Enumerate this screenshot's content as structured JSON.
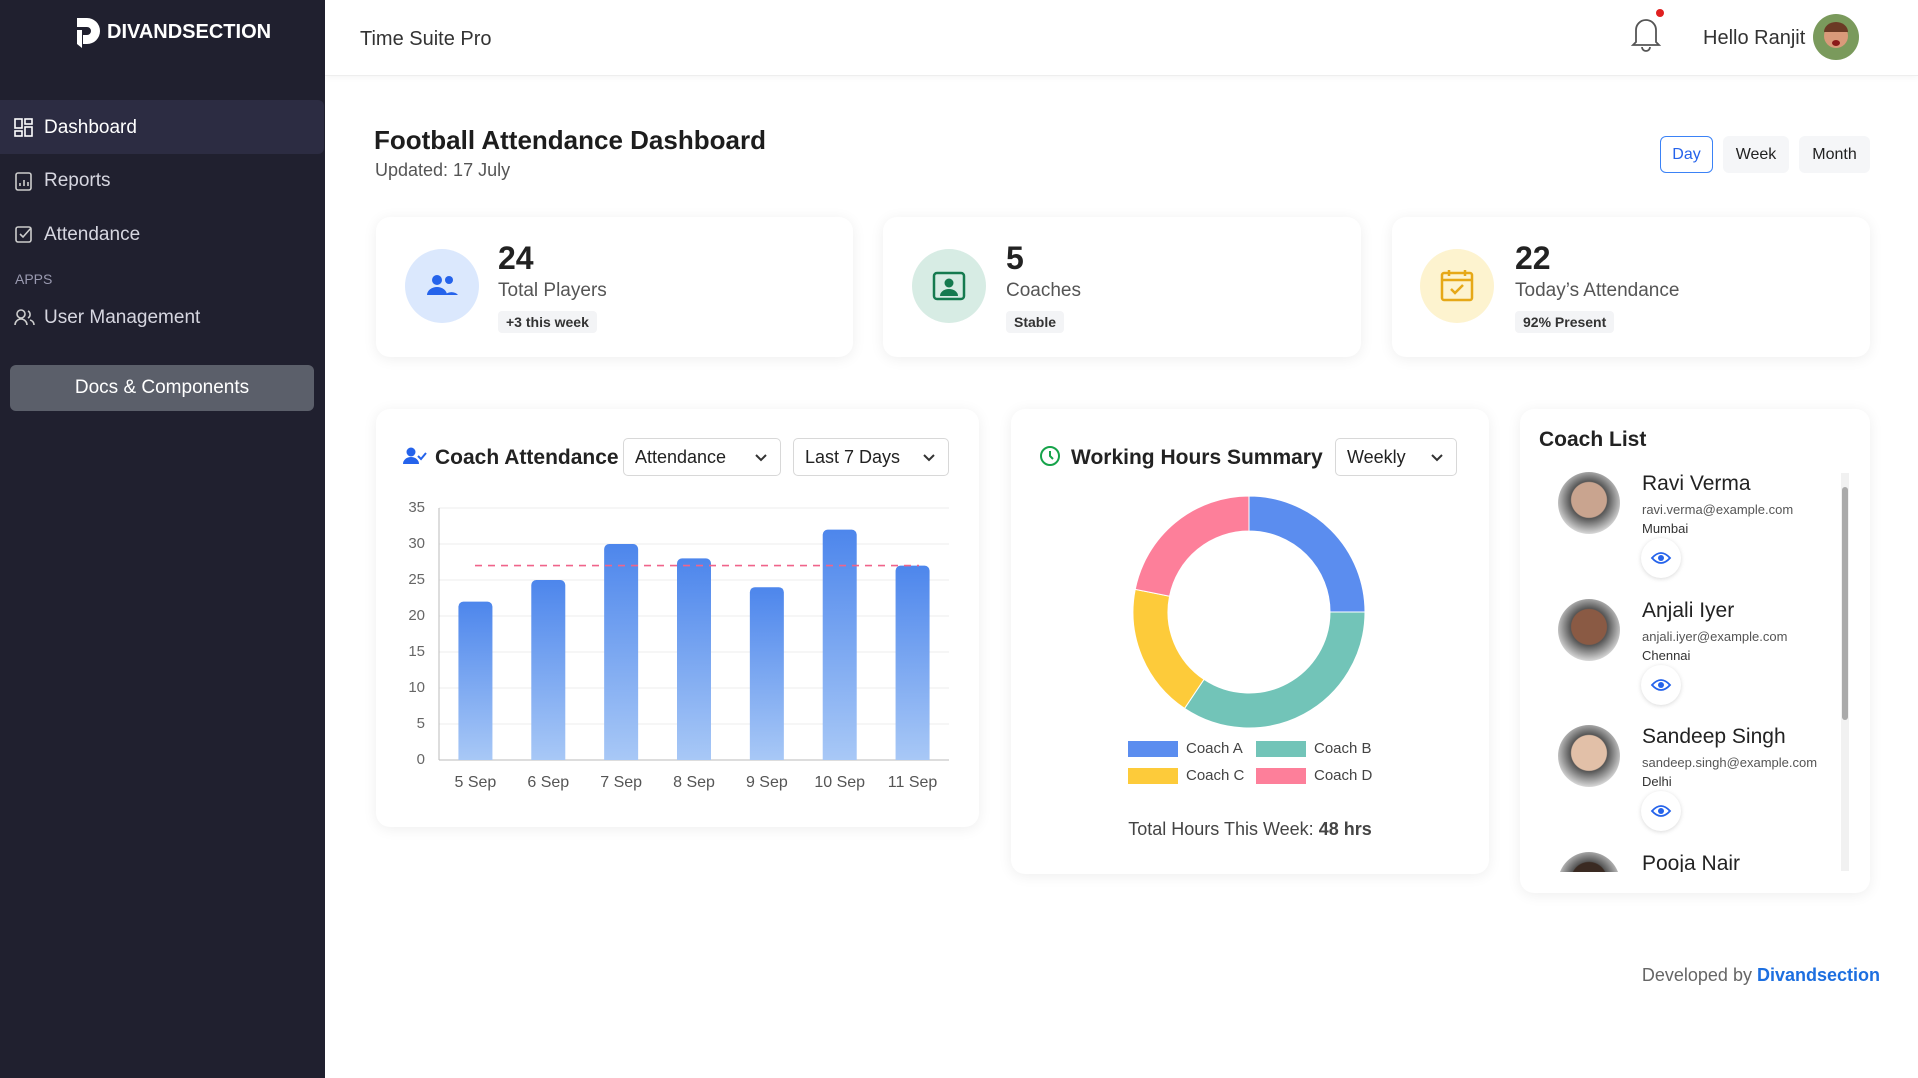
{
  "sidebar": {
    "brand": "DIVANDSECTION",
    "nav": [
      "Dashboard",
      "Reports",
      "Attendance"
    ],
    "section": "APPS",
    "apps": [
      "User Management"
    ],
    "button": "Docs & Components"
  },
  "header": {
    "app_name": "Time Suite Pro",
    "greeting": "Hello Ranjit"
  },
  "page": {
    "title": "Football Attendance Dashboard",
    "updated": "Updated: 17 July",
    "periods": [
      "Day",
      "Week",
      "Month"
    ]
  },
  "stats": [
    {
      "value": 24,
      "label": "Total Players",
      "badge": "+3 this week"
    },
    {
      "value": 5,
      "label": "Coaches",
      "badge": "Stable"
    },
    {
      "value": 22,
      "label": "Today’s Attendance",
      "badge": "92% Present"
    }
  ],
  "chart_data": [
    {
      "type": "bar",
      "title": "Coach Attendance",
      "filters": [
        "Attendance",
        "Last 7 Days"
      ],
      "categories": [
        "5 Sep",
        "6 Sep",
        "7 Sep",
        "8 Sep",
        "9 Sep",
        "10 Sep",
        "11 Sep"
      ],
      "values": [
        22,
        25,
        30,
        28,
        24,
        32,
        27
      ],
      "color": "#4d86ec",
      "reference_line": 27,
      "reference_color": "#f0648a",
      "ylim": [
        0,
        35
      ],
      "yticks": [
        0,
        5,
        10,
        15,
        20,
        25,
        30,
        35
      ],
      "grid": true
    },
    {
      "type": "pie",
      "title": "Working Hours Summary",
      "filter": "Weekly",
      "categories": [
        "Coach A",
        "Coach B",
        "Coach C",
        "Coach D"
      ],
      "values": [
        12,
        16.5,
        9,
        10.5
      ],
      "colors": [
        "#5b8def",
        "#72c4b8",
        "#fdcb3a",
        "#fd7f9a"
      ],
      "total_label": "Total Hours This Week:",
      "total_value": "48 hrs"
    }
  ],
  "coach_list": {
    "title": "Coach List",
    "coaches": [
      {
        "name": "Ravi Verma",
        "email": "ravi.verma@example.com",
        "city": "Mumbai"
      },
      {
        "name": "Anjali Iyer",
        "email": "anjali.iyer@example.com",
        "city": "Chennai"
      },
      {
        "name": "Sandeep Singh",
        "email": "sandeep.singh@example.com",
        "city": "Delhi"
      },
      {
        "name": "Pooja Nair"
      }
    ]
  },
  "footer": {
    "text": "Developed by",
    "link": "Divandsection"
  }
}
